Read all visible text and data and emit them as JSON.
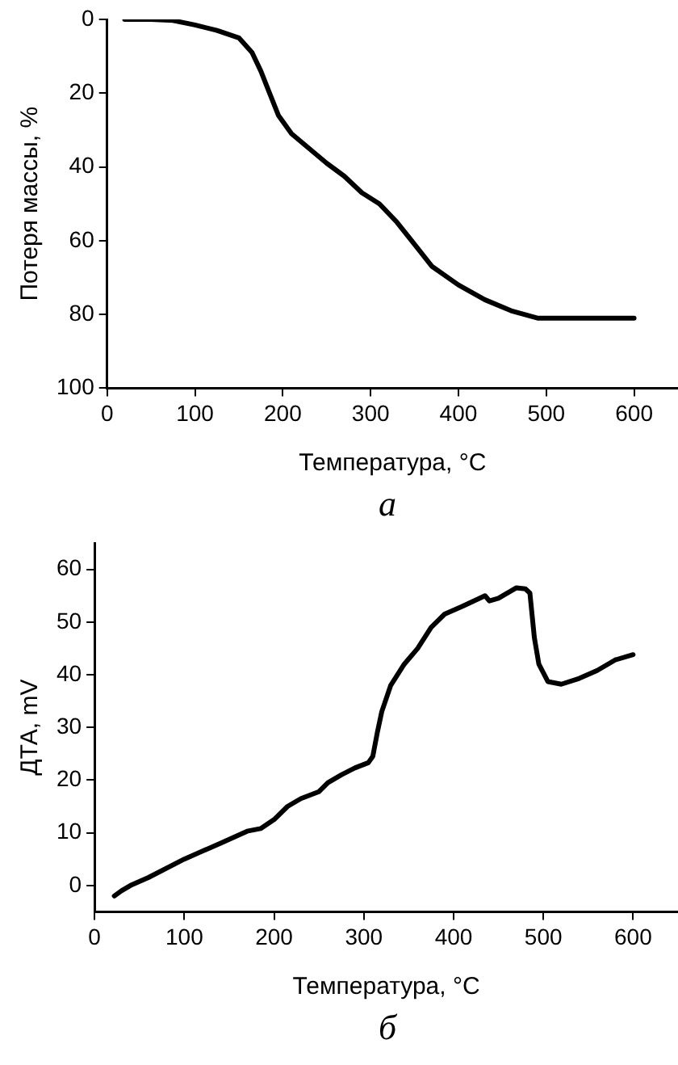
{
  "chart_data": [
    {
      "type": "line",
      "xlabel": "Температура, °C",
      "ylabel": "Потеря массы, %",
      "annotations": [
        "а"
      ],
      "x": [
        20,
        50,
        75,
        100,
        125,
        150,
        165,
        175,
        185,
        195,
        210,
        230,
        250,
        270,
        290,
        310,
        330,
        350,
        370,
        400,
        430,
        460,
        490,
        550,
        600
      ],
      "series": [
        {
          "color": "#000000",
          "values": [
            0,
            0,
            0.3,
            1.5,
            3,
            5,
            9,
            14,
            20,
            26,
            31,
            35,
            39,
            42.5,
            47,
            50,
            55,
            61,
            67,
            72,
            76,
            79,
            81,
            81,
            81
          ]
        }
      ],
      "xlim": [
        0,
        650
      ],
      "xticks": [
        0,
        100,
        200,
        300,
        400,
        500,
        600
      ],
      "ylim": [
        100,
        0
      ],
      "yticks": [
        0,
        20,
        40,
        60,
        80,
        100
      ],
      "grid": false,
      "legend": false,
      "marker": "none",
      "line_style": "solid"
    },
    {
      "type": "line",
      "xlabel": "Температура, °C",
      "ylabel": "ДТА, mV",
      "annotations": [
        "б"
      ],
      "x": [
        22,
        30,
        40,
        60,
        100,
        140,
        170,
        185,
        200,
        215,
        230,
        250,
        260,
        275,
        290,
        305,
        310,
        315,
        320,
        330,
        345,
        360,
        375,
        390,
        410,
        435,
        440,
        450,
        470,
        480,
        485,
        490,
        495,
        505,
        520,
        540,
        560,
        580,
        600
      ],
      "series": [
        {
          "color": "#000000",
          "values": [
            -2,
            -1,
            0,
            1.5,
            5,
            8,
            10.3,
            10.8,
            12.5,
            15,
            16.5,
            17.8,
            19.5,
            21,
            22.3,
            23.3,
            24.5,
            29,
            33,
            38,
            42,
            45,
            49,
            51.5,
            53,
            55,
            54,
            54.5,
            56.5,
            56.3,
            55.5,
            47,
            42,
            38.7,
            38.2,
            39.3,
            40.8,
            42.8,
            43.8
          ]
        }
      ],
      "xlim": [
        0,
        650
      ],
      "xticks": [
        0,
        100,
        200,
        300,
        400,
        500,
        600
      ],
      "ylim": [
        -5,
        65
      ],
      "yticks": [
        0,
        10,
        20,
        30,
        40,
        50,
        60
      ],
      "grid": false,
      "legend": false,
      "marker": "none",
      "line_style": "solid"
    }
  ]
}
